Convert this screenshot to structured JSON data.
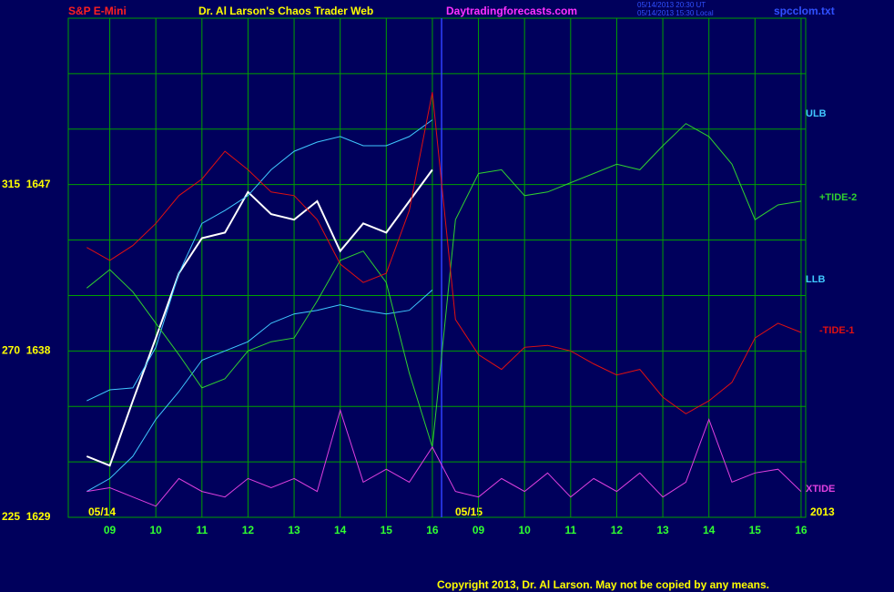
{
  "chart_data": {
    "type": "line",
    "title": "Dr. Al Larson's Chaos Trader Web",
    "instrument": "S&P E-Mini",
    "site": "Daytradingforecasts.com",
    "timestamps": [
      "05/14/2013 20:30 UT",
      "05/14/2013 15:30 Local"
    ],
    "file": "spcclom.txt",
    "copyright": "Copyright 2013, Dr. Al Larson. May not be copied by any means.",
    "date_labels": [
      "05/14",
      "05/15"
    ],
    "year": "2013",
    "now_x": 8.2,
    "xlim": [
      0.1,
      16.1
    ],
    "xticks": [
      {
        "value": 1,
        "label": "09"
      },
      {
        "value": 2,
        "label": "10"
      },
      {
        "value": 3,
        "label": "11"
      },
      {
        "value": 4,
        "label": "12"
      },
      {
        "value": 5,
        "label": "13"
      },
      {
        "value": 6,
        "label": "14"
      },
      {
        "value": 7,
        "label": "15"
      },
      {
        "value": 8,
        "label": "16"
      },
      {
        "value": 9,
        "label": "09"
      },
      {
        "value": 10,
        "label": "10"
      },
      {
        "value": 11,
        "label": "11"
      },
      {
        "value": 12,
        "label": "12"
      },
      {
        "value": 13,
        "label": "13"
      },
      {
        "value": 14,
        "label": "14"
      },
      {
        "value": 15,
        "label": "15"
      },
      {
        "value": 16,
        "label": "16"
      }
    ],
    "ylim": [
      1629,
      1656
    ],
    "yticks": [
      {
        "value": 1647,
        "label": "315  1647"
      },
      {
        "value": 1638,
        "label": "270  1638"
      },
      {
        "value": 1629,
        "label": "225  1629"
      }
    ],
    "ygrid": [
      1629,
      1632,
      1635,
      1638,
      1641,
      1644,
      1647,
      1650,
      1653,
      1656
    ],
    "grid": true,
    "x": [
      0.5,
      1,
      1.5,
      2,
      2.5,
      3,
      3.5,
      4,
      4.5,
      5,
      5.5,
      6,
      6.5,
      7,
      7.5,
      8,
      8.5,
      9,
      9.5,
      10,
      10.5,
      11,
      11.5,
      12,
      12.5,
      13,
      13.5,
      14,
      14.5,
      15,
      15.5,
      16
    ],
    "series": [
      {
        "color": "#ffffff",
        "values": [
          1632.3,
          1631.8,
          1635.3,
          1638.7,
          1642.2,
          1644.1,
          1644.4,
          1646.6,
          1645.4,
          1645.1,
          1646.1,
          1643.4,
          1644.9,
          1644.4,
          1646.1,
          1647.8,
          null,
          null,
          null,
          null,
          null,
          null,
          null,
          null,
          null,
          null,
          null,
          null,
          null,
          null,
          null,
          null
        ]
      },
      {
        "name": "ULB",
        "color": "#40c8ff",
        "values": [
          1635.3,
          1635.9,
          1636.0,
          1638.2,
          1642.2,
          1644.9,
          1645.6,
          1646.4,
          1647.8,
          1648.8,
          1649.3,
          1649.6,
          1649.1,
          1649.1,
          1649.6,
          1650.5,
          null,
          null,
          null,
          null,
          null,
          null,
          null,
          null,
          null,
          null,
          null,
          null,
          null,
          null,
          null,
          null
        ]
      },
      {
        "name": "LLB",
        "color": "#40c8ff",
        "values": [
          1630.4,
          1631.1,
          1632.3,
          1634.3,
          1635.8,
          1637.5,
          1638.0,
          1638.5,
          1639.5,
          1640.0,
          1640.2,
          1640.5,
          1640.2,
          1640.0,
          1640.2,
          1641.3,
          null,
          null,
          null,
          null,
          null,
          null,
          null,
          null,
          null,
          null,
          null,
          null,
          null,
          null,
          null,
          null
        ]
      },
      {
        "name": "+TIDE-2",
        "color": "#30d030",
        "values": [
          1641.4,
          1642.4,
          1641.2,
          1639.5,
          1637.8,
          1636.0,
          1636.5,
          1638.0,
          1638.5,
          1638.7,
          1640.7,
          1642.9,
          1643.4,
          1641.7,
          1636.8,
          1632.8,
          1645.1,
          1647.6,
          1647.8,
          1646.4,
          1646.6,
          1647.1,
          1647.6,
          1648.1,
          1647.8,
          1649.1,
          1650.3,
          1649.6,
          1648.1,
          1645.1,
          1645.9,
          1646.1
        ]
      },
      {
        "name": "-TIDE-1",
        "color": "#e01010",
        "values": [
          1643.6,
          1642.9,
          1643.7,
          1644.9,
          1646.4,
          1647.3,
          1648.8,
          1647.8,
          1646.6,
          1646.4,
          1645.1,
          1642.7,
          1641.7,
          1642.2,
          1645.6,
          1652.0,
          1639.7,
          1637.8,
          1637.0,
          1638.2,
          1638.3,
          1638.0,
          1637.3,
          1636.7,
          1637.0,
          1635.5,
          1634.6,
          1635.3,
          1636.3,
          1638.7,
          1639.5,
          1639.0
        ]
      },
      {
        "name": "XTIDE",
        "color": "#e040e0",
        "values": [
          1630.4,
          1630.6,
          1630.1,
          1629.6,
          1631.1,
          1630.4,
          1630.1,
          1631.1,
          1630.6,
          1631.1,
          1630.4,
          1634.8,
          1630.9,
          1631.6,
          1630.9,
          1632.8,
          1630.4,
          1630.1,
          1631.1,
          1630.4,
          1631.4,
          1630.1,
          1631.1,
          1630.4,
          1631.4,
          1630.1,
          1630.9,
          1634.3,
          1630.9,
          1631.4,
          1631.6,
          1630.4
        ]
      }
    ]
  }
}
